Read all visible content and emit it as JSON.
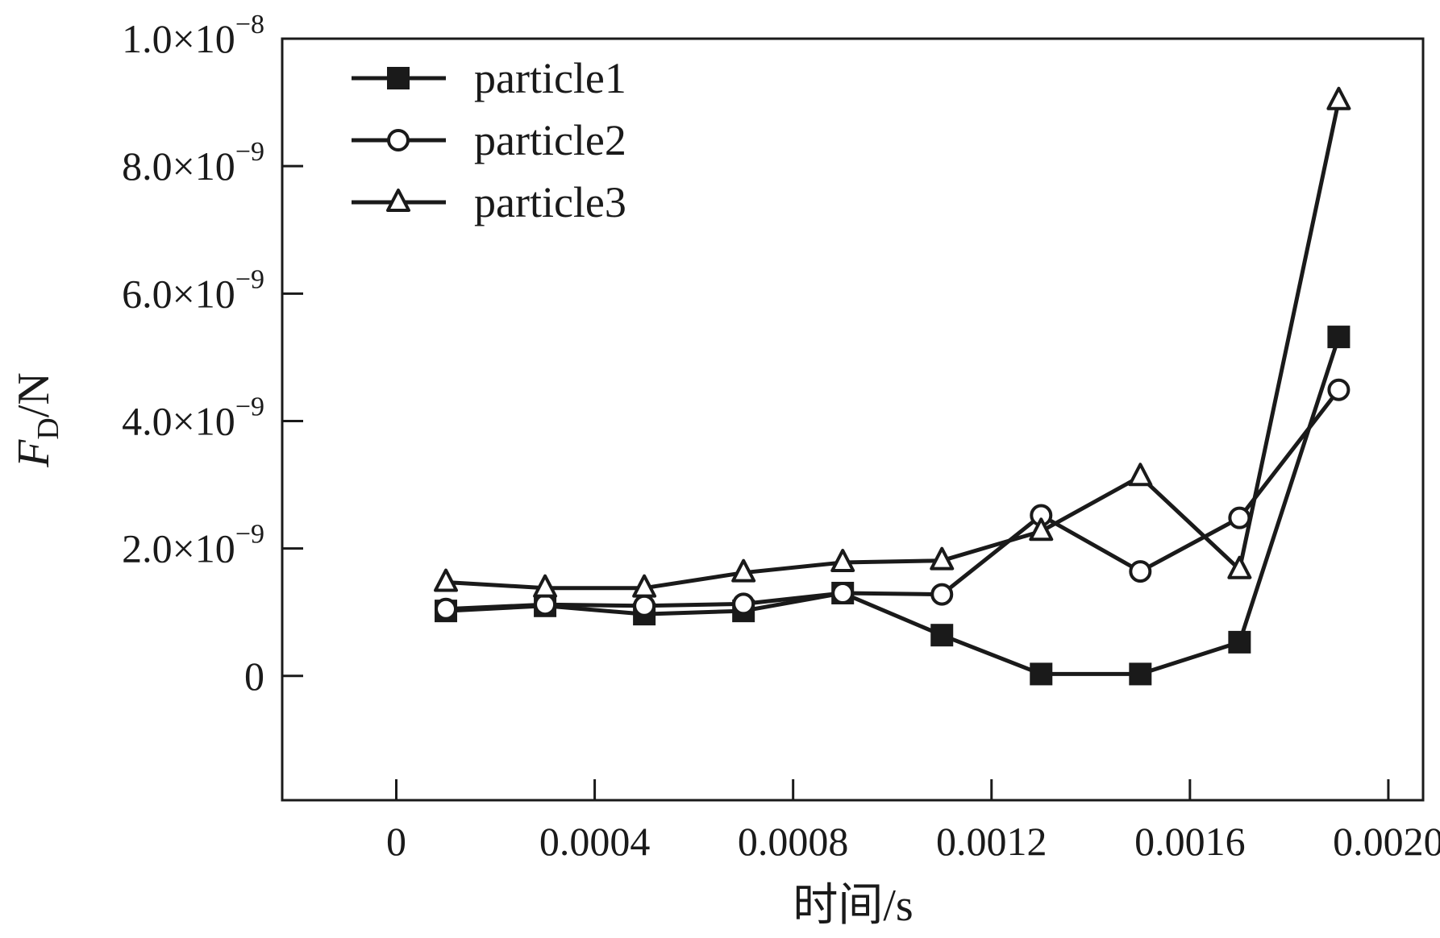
{
  "chart_data": {
    "type": "line",
    "xlabel": "时间/s",
    "ylabel": {
      "main": "F",
      "sub": "D",
      "unit": "/N"
    },
    "xlim": [
      -0.00023,
      0.00207
    ],
    "ylim": [
      -1.95e-09,
      1e-08
    ],
    "x_ticks": [
      {
        "value": 0,
        "label": "0"
      },
      {
        "value": 0.0004,
        "label": "0.0004"
      },
      {
        "value": 0.0008,
        "label": "0.0008"
      },
      {
        "value": 0.0012,
        "label": "0.0012"
      },
      {
        "value": 0.0016,
        "label": "0.0016"
      },
      {
        "value": 0.002,
        "label": "0.0020"
      }
    ],
    "y_ticks": [
      {
        "value": 0,
        "mantissa": "0",
        "exponent": ""
      },
      {
        "value": 2e-09,
        "mantissa": "2.0×10",
        "exponent": "−9"
      },
      {
        "value": 4e-09,
        "mantissa": "4.0×10",
        "exponent": "−9"
      },
      {
        "value": 6e-09,
        "mantissa": "6.0×10",
        "exponent": "−9"
      },
      {
        "value": 8e-09,
        "mantissa": "8.0×10",
        "exponent": "−9"
      },
      {
        "value": 1e-08,
        "mantissa": "1.0×10",
        "exponent": "−8"
      }
    ],
    "x": [
      0.0001,
      0.0003,
      0.0005,
      0.0007,
      0.0009,
      0.0011,
      0.0013,
      0.0015,
      0.0017,
      0.0019
    ],
    "series": [
      {
        "name": "particle1",
        "marker": "filled-square",
        "values": [
          1.02e-09,
          1.1e-09,
          9.7e-10,
          1.02e-09,
          1.3e-09,
          6.4e-10,
          3e-11,
          3e-11,
          5.3e-10,
          5.32e-09
        ]
      },
      {
        "name": "particle2",
        "marker": "open-circle",
        "values": [
          1.05e-09,
          1.12e-09,
          1.1e-09,
          1.13e-09,
          1.3e-09,
          1.28e-09,
          2.52e-09,
          1.64e-09,
          2.48e-09,
          4.49e-09
        ]
      },
      {
        "name": "particle3",
        "marker": "open-triangle",
        "values": [
          1.47e-09,
          1.38e-09,
          1.38e-09,
          1.62e-09,
          1.78e-09,
          1.81e-09,
          2.27e-09,
          3.13e-09,
          1.67e-09,
          9.03e-09
        ]
      }
    ],
    "grid": false,
    "legend_position": "top-left",
    "colors": {
      "line": "#1a1a1a",
      "marker_fill": "#1a1a1a",
      "open_marker_fill": "#ffffff",
      "background": "#ffffff"
    }
  }
}
